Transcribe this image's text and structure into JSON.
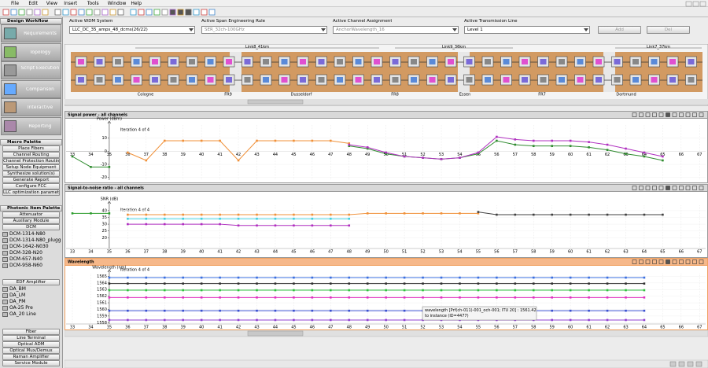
{
  "menu": [
    "File",
    "Edit",
    "View",
    "Insert",
    "Tools",
    "Window",
    "Help"
  ],
  "workflow": {
    "title": "Design Workflow",
    "items": [
      "Requirements",
      "Topology",
      "Script Execution",
      "Comparison",
      "Interactive",
      "Reporting"
    ]
  },
  "macro": {
    "title": "Macro Palette",
    "items": [
      "Place Fibers",
      "Channel Routing",
      "Channel Protection Routing",
      "Setup Node Equipment",
      "Synthesize solution(s)",
      "Generate Report",
      "Configure FCC",
      "LLC optimization parameters"
    ]
  },
  "palette": {
    "title": "Photonic Item Palette",
    "buttons1": [
      "Attenuator",
      "Auxiliary Module",
      "DCM"
    ],
    "dcm": [
      "DCM-1314-N80",
      "DCM-1314-N80_plugg...",
      "DCM-1642-N030",
      "DCM-328-N20",
      "DCM-657-N40",
      "DCM-958-N60"
    ],
    "edfa_title": "EDF Amplifier",
    "edfa": [
      "DA_BM",
      "DA_LM",
      "DA_PM",
      "OA-25 Pre",
      "OA_20 Line"
    ],
    "buttons2": [
      "Fiber",
      "Line Terminal",
      "Optical ADM",
      "Optical Mux/Demux",
      "Raman Amplifier",
      "Service Module"
    ]
  },
  "selectors": [
    {
      "label": "Active WDM System",
      "value": "LLC_DC_35_amps_48_dcms(26/22)"
    },
    {
      "label": "Active Span Engineering Rule",
      "value": "SER_32ch-100GHz"
    },
    {
      "label": "Active Channel Assignment",
      "value": "AnchorWavelength_16"
    },
    {
      "label": "Active Transmission Line",
      "value": "Level 1"
    }
  ],
  "buttons": [
    "Add",
    "Del"
  ],
  "topology": {
    "links": [
      "Link8_41km",
      "Link9_36km",
      "Link7_37km"
    ],
    "nodes": [
      "Cologne",
      "FR9",
      "Dusseldorf",
      "FR8",
      "Essen",
      "FR7",
      "Dortmund"
    ]
  },
  "categories": [
    33,
    34,
    35,
    36,
    37,
    38,
    39,
    40,
    41,
    42,
    43,
    44,
    45,
    46,
    47,
    48,
    49,
    50,
    51,
    52,
    53,
    54,
    55,
    56,
    57,
    58,
    59,
    60,
    61,
    62,
    63,
    64,
    65,
    66,
    67
  ],
  "panels": [
    {
      "type": "line",
      "title": "Signal power - all channels",
      "y_label": "Power (dBm)",
      "iteration": "Iteration 4 of 4",
      "ylim": [
        -22,
        20
      ],
      "yticks": [
        10,
        0,
        -10,
        -20
      ],
      "series": [
        {
          "color": "#f0913a",
          "values": [
            null,
            null,
            null,
            -1,
            -7,
            8,
            8,
            8,
            8,
            -7,
            8,
            8,
            8,
            8,
            8,
            6,
            null,
            null,
            null,
            null,
            null,
            null,
            null,
            null,
            null,
            null,
            null,
            null,
            null,
            null,
            null,
            null,
            null,
            null,
            null
          ]
        },
        {
          "color": "#2e8b2e",
          "values": [
            -4,
            -12,
            -12,
            null,
            null,
            null,
            null,
            null,
            null,
            null,
            null,
            null,
            null,
            null,
            null,
            4,
            2,
            -2,
            -4,
            -5,
            -6,
            -5,
            -2,
            8,
            5,
            4,
            4,
            4,
            3,
            1,
            -2,
            -4,
            -7,
            null,
            null
          ]
        },
        {
          "color": "#b030c0",
          "values": [
            null,
            null,
            null,
            null,
            null,
            null,
            null,
            null,
            null,
            null,
            null,
            null,
            null,
            null,
            null,
            5,
            3,
            -1,
            -4,
            -5,
            -6,
            -5,
            -1,
            11,
            9,
            8,
            8,
            8,
            7,
            5,
            2,
            -1,
            -4,
            null,
            null
          ]
        }
      ]
    },
    {
      "type": "line",
      "title": "Signal-to-noise ratio - all channels",
      "y_label": "SNR (dB)",
      "iteration": "Iteration 4 of 4",
      "ylim": [
        12,
        44
      ],
      "yticks": [
        40,
        35,
        30,
        25,
        20
      ],
      "series": [
        {
          "color": "#f0913a",
          "values": [
            null,
            null,
            null,
            37,
            37,
            37,
            37,
            37,
            37,
            37,
            37,
            37,
            37,
            37,
            37,
            37,
            38,
            38,
            38,
            38,
            38,
            38,
            38,
            null,
            null,
            null,
            null,
            null,
            null,
            null,
            null,
            null,
            null,
            null,
            null
          ]
        },
        {
          "color": "#40d0e0",
          "values": [
            null,
            null,
            null,
            34,
            34,
            34,
            34,
            34,
            34,
            34,
            34,
            34,
            34,
            34,
            34,
            34,
            null,
            null,
            null,
            null,
            null,
            null,
            null,
            null,
            null,
            null,
            null,
            null,
            null,
            null,
            null,
            null,
            null,
            null,
            null
          ]
        },
        {
          "color": "#b030c0",
          "values": [
            null,
            null,
            null,
            30,
            30,
            30,
            30,
            30,
            30,
            29,
            29,
            29,
            29,
            29,
            29,
            29,
            null,
            null,
            null,
            null,
            null,
            null,
            null,
            null,
            null,
            null,
            null,
            null,
            null,
            null,
            null,
            null,
            null,
            null,
            null
          ]
        },
        {
          "color": "#2e9e2e",
          "values": [
            38,
            38,
            38,
            null,
            null,
            null,
            null,
            null,
            null,
            null,
            null,
            null,
            null,
            null,
            null,
            null,
            null,
            null,
            null,
            null,
            null,
            null,
            null,
            null,
            null,
            null,
            null,
            null,
            null,
            null,
            null,
            null,
            null,
            null,
            null
          ]
        },
        {
          "color": "#404040",
          "values": [
            null,
            null,
            null,
            null,
            null,
            null,
            null,
            null,
            null,
            null,
            null,
            null,
            null,
            null,
            null,
            null,
            null,
            null,
            null,
            null,
            null,
            null,
            39,
            37,
            37,
            37,
            37,
            37,
            37,
            37,
            37,
            37,
            37,
            null,
            null
          ]
        }
      ]
    },
    {
      "type": "line",
      "title": "Wavelength",
      "y_label": "Wavelength (nm)",
      "iteration": "Iteration 4 of 4",
      "ylim": [
        1557.8,
        1565.4
      ],
      "yticks": [
        1565,
        1564,
        1563,
        1562,
        1561,
        1560,
        1559,
        1558
      ],
      "tooltip": [
        "wavelength [Prf(ch-011)-001_och-001; ITU 20] : 1561.42",
        "to instance (ID=4477)"
      ],
      "series": [
        {
          "color": "#3a6fe0",
          "values": [
            null,
            null,
            1564.8,
            1564.8,
            1564.8,
            1564.8,
            1564.8,
            1564.8,
            1564.8,
            1564.8,
            1564.8,
            1564.8,
            1564.8,
            1564.8,
            1564.8,
            1564.8,
            1564.8,
            1564.8,
            1564.8,
            1564.8,
            1564.8,
            1564.8,
            1564.8,
            1564.8,
            1564.8,
            1564.8,
            1564.8,
            1564.8,
            1564.8,
            1564.8,
            1564.8,
            1564.8,
            null,
            null,
            null
          ]
        },
        {
          "color": "#303030",
          "values": [
            null,
            null,
            1563.9,
            1563.9,
            1563.9,
            1563.9,
            1563.9,
            1563.9,
            1563.9,
            1563.9,
            1563.9,
            1563.9,
            1563.9,
            1563.9,
            1563.9,
            1563.9,
            1563.9,
            1563.9,
            1563.9,
            1563.9,
            1563.9,
            1563.9,
            1563.9,
            1563.9,
            1563.9,
            1563.9,
            1563.9,
            1563.9,
            1563.9,
            1563.9,
            1563.9,
            1563.9,
            null,
            null,
            null
          ]
        },
        {
          "color": "#30c040",
          "values": [
            null,
            null,
            1562.9,
            1562.9,
            1562.9,
            1562.9,
            1562.9,
            1562.9,
            1562.9,
            1562.9,
            1562.9,
            1562.9,
            1562.9,
            1562.9,
            1562.9,
            1562.9,
            1562.9,
            1562.9,
            1562.9,
            1562.9,
            1562.9,
            1562.9,
            1562.9,
            1562.9,
            1562.9,
            1562.9,
            1562.9,
            1562.9,
            1562.9,
            1562.9,
            1562.9,
            1562.9,
            null,
            null,
            null
          ]
        },
        {
          "color": "#e030c0",
          "values": [
            null,
            null,
            1561.8,
            1561.8,
            1561.8,
            1561.8,
            1561.8,
            1561.8,
            1561.8,
            1561.8,
            1561.8,
            1561.8,
            1561.8,
            1561.8,
            1561.8,
            1561.8,
            1561.8,
            1561.8,
            1561.8,
            1561.8,
            1561.8,
            1561.8,
            1561.8,
            1561.8,
            1561.8,
            1561.8,
            1561.8,
            1561.8,
            1561.8,
            1561.8,
            1561.8,
            1561.8,
            null,
            null,
            null
          ]
        },
        {
          "color": "#3a50d0",
          "values": [
            null,
            null,
            1559.8,
            1559.8,
            1559.8,
            1559.8,
            1559.8,
            1559.8,
            1559.8,
            1559.8,
            1559.8,
            1559.8,
            1559.8,
            1559.8,
            1559.8,
            1559.8,
            1559.8,
            1559.8,
            1559.8,
            1559.8,
            1559.8,
            1559.8,
            1559.8,
            1559.8,
            1559.8,
            1559.8,
            1559.8,
            1559.8,
            1559.8,
            1559.8,
            1559.8,
            1559.8,
            null,
            null,
            null
          ]
        },
        {
          "color": "#9040d0",
          "values": [
            null,
            null,
            1558.4,
            1558.4,
            1558.4,
            1558.4,
            1558.4,
            1558.4,
            1558.4,
            1558.4,
            1558.4,
            1558.4,
            1558.4,
            1558.4,
            1558.4,
            1558.4,
            1558.4,
            1558.4,
            1558.4,
            1558.4,
            1558.4,
            1558.4,
            1558.4,
            1558.4,
            1558.4,
            1558.4,
            1558.4,
            1558.4,
            1558.4,
            1558.4,
            1558.4,
            1558.4,
            null,
            null,
            null
          ]
        }
      ]
    }
  ]
}
